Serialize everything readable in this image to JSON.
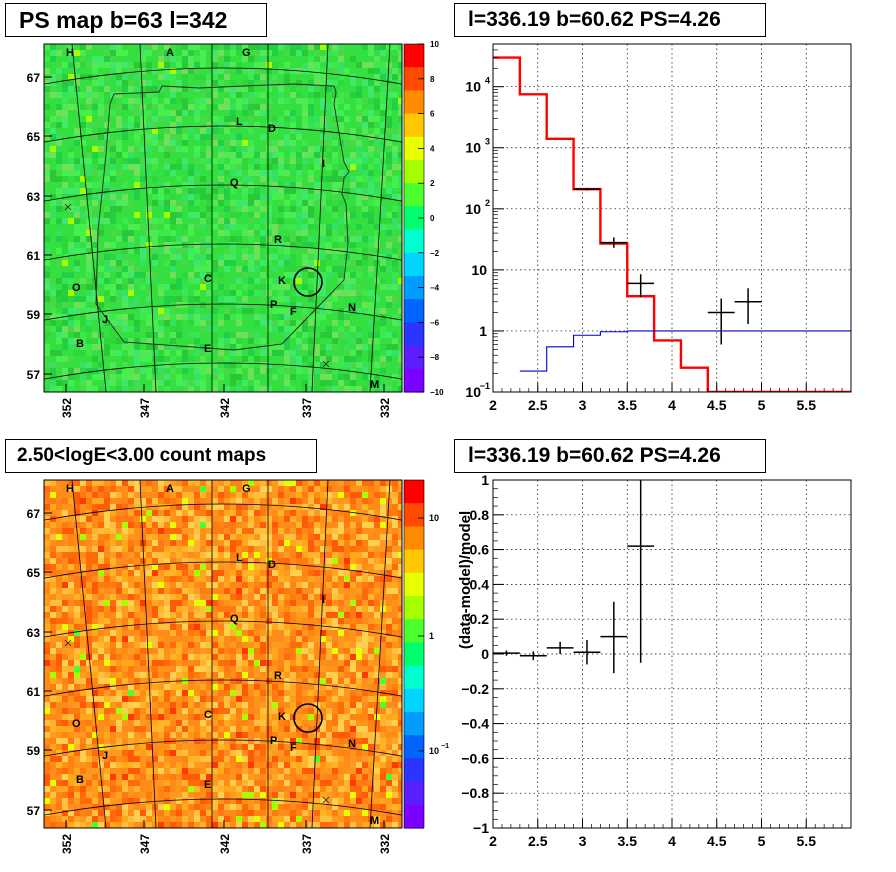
{
  "panels": {
    "map_top": {
      "title": "PS map b=63 l=342",
      "scale": "linear",
      "palette_ticks": [
        "10",
        "8",
        "6",
        "4",
        "2",
        "0",
        "−2",
        "−4",
        "−6",
        "−8",
        "−10"
      ],
      "palette_colors": [
        "#ff0000",
        "#ff4a00",
        "#ff8c00",
        "#ffc800",
        "#e8ff00",
        "#a6ff00",
        "#4dff2e",
        "#00ff6e",
        "#00ffd0",
        "#00d4ff",
        "#009cff",
        "#0064ff",
        "#2a36ff",
        "#5a1eff",
        "#7a00ff"
      ]
    },
    "map_bottom": {
      "title": "2.50<logE<3.00 count maps",
      "scale": "log",
      "palette_ticks": [
        "10",
        "1",
        "10",
        "−1"
      ],
      "palette_colors": [
        "#ff0000",
        "#ff4a00",
        "#ff8c00",
        "#ffc800",
        "#e8ff00",
        "#a6ff00",
        "#4dff2e",
        "#00ff6e",
        "#00ffd0",
        "#00d4ff",
        "#009cff",
        "#0064ff",
        "#2a36ff",
        "#5a1eff",
        "#7a00ff"
      ]
    },
    "spectrum": {
      "title": "l=336.19 b=60.62 PS=4.26"
    },
    "residual": {
      "title": "l=336.19 b=60.62 PS=4.26"
    }
  },
  "sky_axes": {
    "lat_ticks": [
      "67",
      "65",
      "63",
      "61",
      "59",
      "57"
    ],
    "lon_ticks": [
      "352",
      "347",
      "342",
      "337",
      "332"
    ]
  },
  "sources": [
    "H",
    "A",
    "G",
    "L",
    "D",
    "I",
    "Q",
    "R",
    "C",
    "K",
    "O",
    "P",
    "F",
    "N",
    "J",
    "B",
    "E",
    "M"
  ],
  "chart_data": [
    {
      "type": "heatmap",
      "title": "PS map b=63 l=342",
      "xlabel": "",
      "ylabel": "",
      "zlim": [
        -10,
        10
      ],
      "z_scale": "linear",
      "colors": {
        "dominant": "#3ae63c",
        "region_outline": "#222222",
        "grid": "#000000",
        "circle": "#000000"
      },
      "note_text": ""
    },
    {
      "type": "line",
      "title": "l=336.19 b=60.62 PS=4.26",
      "xlabel": "",
      "ylabel": "",
      "xlim": [
        2.0,
        6.0
      ],
      "ylim": [
        0.1,
        50000
      ],
      "y_scale": "log",
      "x_ticks": [
        "2",
        "2.5",
        "3",
        "3.5",
        "4",
        "4.5",
        "5",
        "5.5"
      ],
      "y_tick_labels": [
        {
          "base": "10",
          "exp": "−1"
        },
        {
          "base": "1",
          "exp": ""
        },
        {
          "base": "10",
          "exp": ""
        },
        {
          "base": "10",
          "exp": "2"
        },
        {
          "base": "10",
          "exp": "3"
        },
        {
          "base": "10",
          "exp": "4"
        }
      ],
      "grid": true,
      "series": [
        {
          "color": "#ff0000",
          "style": "step",
          "edges": [
            2.0,
            2.3,
            2.6,
            2.9,
            3.2,
            3.5,
            3.8,
            4.1,
            4.4,
            4.7,
            5.0,
            5.3,
            5.6,
            5.9,
            6.0
          ],
          "values": [
            30000,
            7500,
            1400,
            210,
            27,
            3.7,
            0.7,
            0.25,
            0.1,
            0.1,
            0.1,
            0.1,
            0.1,
            0.1
          ]
        },
        {
          "color": "#0000cc",
          "style": "step",
          "edges": [
            2.3,
            2.6,
            2.9,
            3.2,
            3.5,
            3.8,
            4.1,
            4.4,
            4.7,
            5.0,
            5.3,
            5.6,
            5.9,
            6.0
          ],
          "values": [
            0.22,
            0.55,
            0.85,
            0.97,
            1.0,
            1.0,
            1.0,
            1.0,
            1.0,
            1.0,
            1.0,
            1.0,
            1.0
          ]
        },
        {
          "color": "#000000",
          "style": "points",
          "points": [
            {
              "x": 3.05,
              "y": 210,
              "xerr": 0.15,
              "ylo": 200,
              "yhi": 220
            },
            {
              "x": 3.35,
              "y": 28,
              "xerr": 0.15,
              "ylo": 23,
              "yhi": 34
            },
            {
              "x": 3.65,
              "y": 6.0,
              "xerr": 0.15,
              "ylo": 3.6,
              "yhi": 8.5
            },
            {
              "x": 4.55,
              "y": 2.0,
              "xerr": 0.15,
              "ylo": 0.6,
              "yhi": 3.4
            },
            {
              "x": 4.85,
              "y": 3.0,
              "xerr": 0.15,
              "ylo": 1.3,
              "yhi": 5.0
            }
          ]
        }
      ]
    },
    {
      "type": "heatmap",
      "title": "2.50<logE<3.00 count maps",
      "xlabel": "",
      "ylabel": "",
      "z_scale": "log",
      "colors": {
        "dominant": "#ff8c1a",
        "region_outline": "#222222",
        "grid": "#000000",
        "circle": "#000000"
      }
    },
    {
      "type": "scatter",
      "title": "l=336.19 b=60.62 PS=4.26",
      "xlabel": "",
      "ylabel": "(data-model)/model",
      "xlim": [
        2.0,
        6.0
      ],
      "ylim": [
        -1.0,
        1.0
      ],
      "x_ticks": [
        "2",
        "2.5",
        "3",
        "3.5",
        "4",
        "4.5",
        "5",
        "5.5"
      ],
      "y_ticks": [
        "1",
        "0.8",
        "0.6",
        "0.4",
        "0.2",
        "0",
        "−0.2",
        "−0.4",
        "−0.6",
        "−0.8",
        "−1"
      ],
      "grid": true,
      "series": [
        {
          "color": "#000000",
          "points": [
            {
              "x": 2.15,
              "y": 0.005,
              "xerr": 0.15,
              "ylo": -0.01,
              "yhi": 0.02
            },
            {
              "x": 2.45,
              "y": -0.01,
              "xerr": 0.15,
              "ylo": -0.035,
              "yhi": 0.015
            },
            {
              "x": 2.75,
              "y": 0.035,
              "xerr": 0.15,
              "ylo": 0.0,
              "yhi": 0.07
            },
            {
              "x": 3.05,
              "y": 0.01,
              "xerr": 0.15,
              "ylo": -0.06,
              "yhi": 0.08
            },
            {
              "x": 3.35,
              "y": 0.1,
              "xerr": 0.15,
              "ylo": -0.11,
              "yhi": 0.3
            },
            {
              "x": 3.65,
              "y": 0.62,
              "xerr": 0.15,
              "ylo": -0.05,
              "yhi": 1.0
            }
          ]
        }
      ]
    }
  ]
}
